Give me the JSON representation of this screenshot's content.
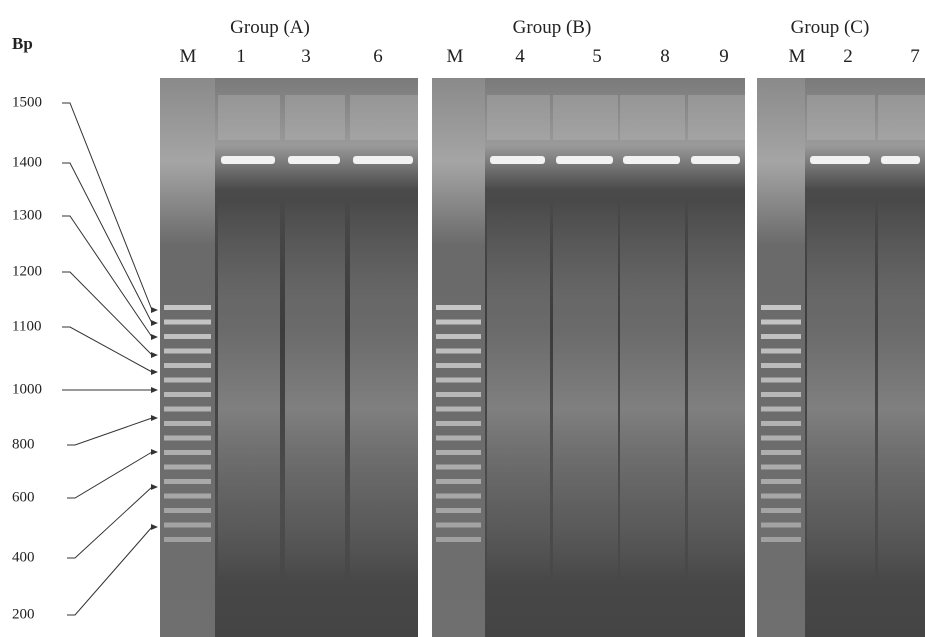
{
  "y_axis": {
    "title": "Bp",
    "labels": [
      "1500",
      "1400",
      "1300",
      "1200",
      "1100",
      "1000",
      "800",
      "600",
      "400",
      "200"
    ]
  },
  "groups": [
    {
      "title": "Group (A)",
      "lanes": [
        "M",
        "1",
        "3",
        "6"
      ]
    },
    {
      "title": "Group (B)",
      "lanes": [
        "M",
        "4",
        "5",
        "8",
        "9"
      ]
    },
    {
      "title": "Group (C)",
      "lanes": [
        "M",
        "2",
        "7"
      ]
    }
  ]
}
